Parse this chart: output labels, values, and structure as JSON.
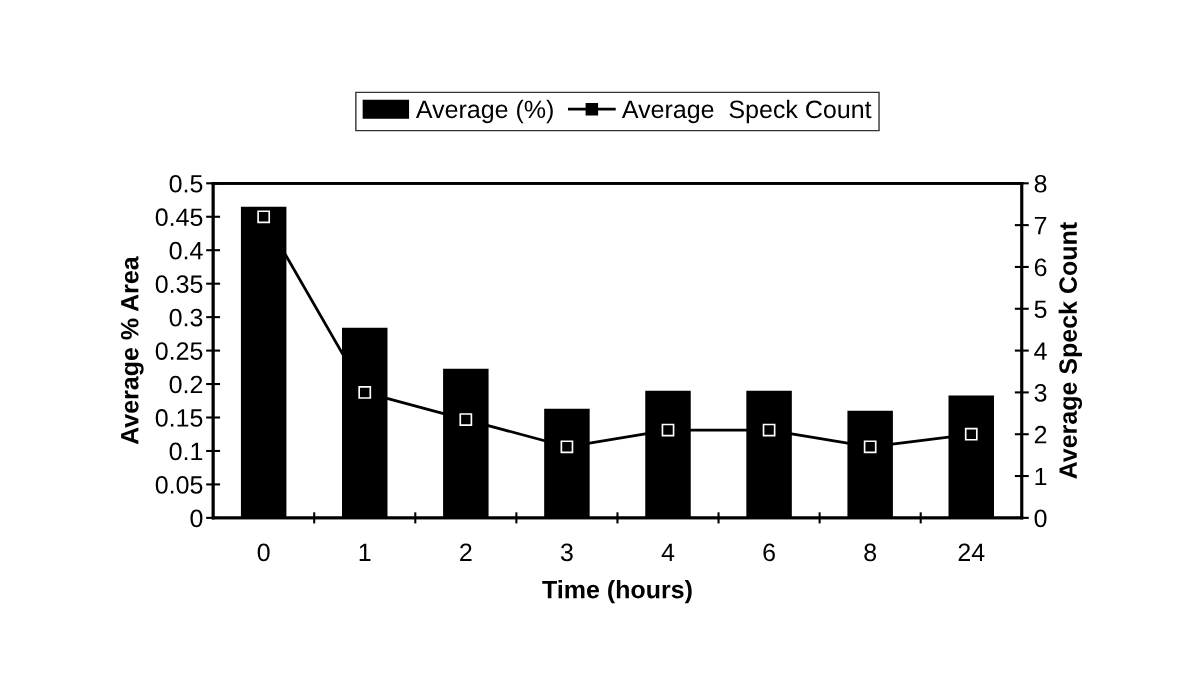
{
  "chart_data": {
    "type": "bar",
    "xlabel": "Time (hours)",
    "ylabel": "Average % Area",
    "y2label": "Average Speck Count",
    "categories": [
      "0",
      "1",
      "2",
      "3",
      "4",
      "6",
      "8",
      "24"
    ],
    "series": [
      {
        "name": "Average (%)",
        "color": "#000000",
        "values": [
          0.465,
          0.284,
          0.223,
          0.163,
          0.19,
          0.19,
          0.16,
          0.183
        ]
      },
      {
        "name": "Average  Speck Count",
        "type": "line",
        "axis": "y2",
        "color": "#000000",
        "marker": "square",
        "values": [
          7.2,
          3.0,
          2.35,
          1.7,
          2.1,
          2.1,
          1.7,
          2.0
        ]
      }
    ],
    "ylim": [
      0,
      0.5
    ],
    "yticks": [
      0,
      0.05,
      0.1,
      0.15,
      0.2,
      0.25,
      0.3,
      0.35,
      0.4,
      0.45,
      0.5
    ],
    "y2lim": [
      0,
      8
    ],
    "y2ticks": [
      0,
      1,
      2,
      3,
      4,
      5,
      6,
      7,
      8
    ],
    "grid": false,
    "legend": "top"
  }
}
